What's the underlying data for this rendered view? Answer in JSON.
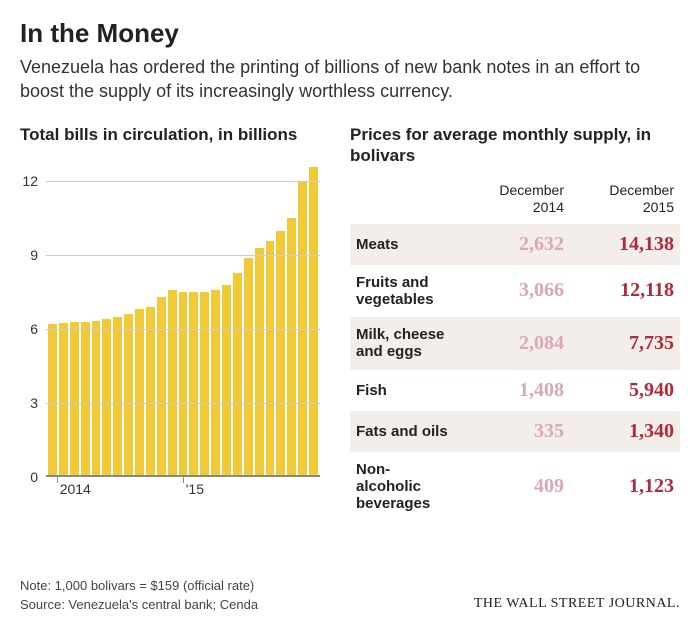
{
  "header": {
    "title": "In the Money",
    "subtitle": "Venezuela has ordered the printing of billions of new bank notes in an effort to boost the supply of its increasingly worthless currency."
  },
  "chart": {
    "title": "Total bills in circulation, in billions",
    "type": "bar",
    "ylim": [
      0,
      13
    ],
    "yticks": [
      0,
      3,
      6,
      9,
      12
    ],
    "values": [
      6.2,
      6.25,
      6.3,
      6.3,
      6.35,
      6.4,
      6.5,
      6.6,
      6.8,
      6.9,
      7.3,
      7.6,
      7.5,
      7.5,
      7.5,
      7.6,
      7.8,
      8.3,
      8.9,
      9.3,
      9.6,
      10.0,
      10.5,
      12.0,
      12.6
    ],
    "xlabels": [
      {
        "pos_pct": 4,
        "text": "2014",
        "tick": true
      },
      {
        "pos_pct": 50,
        "text": "'15",
        "tick": true
      }
    ],
    "bar_color": "#f2c936",
    "grid_color": "#cccccc",
    "baseline_color": "#888888"
  },
  "table": {
    "title": "Prices for average monthly supply, in bolivars",
    "columns": [
      {
        "label": ""
      },
      {
        "label": "December 2014"
      },
      {
        "label": "December 2015"
      }
    ],
    "value_colors": {
      "col1": "#d9a8b3",
      "col2": "#b02a3a"
    },
    "row_shade": "#f3eeea",
    "rows": [
      {
        "category": "Meats",
        "v1": "2,632",
        "v2": "14,138"
      },
      {
        "category": "Fruits and vegetables",
        "v1": "3,066",
        "v2": "12,118"
      },
      {
        "category": "Milk, cheese and eggs",
        "v1": "2,084",
        "v2": "7,735"
      },
      {
        "category": "Fish",
        "v1": "1,408",
        "v2": "5,940"
      },
      {
        "category": "Fats and oils",
        "v1": "335",
        "v2": "1,340"
      },
      {
        "category": "Non-alcoholic beverages",
        "v1": "409",
        "v2": "1,123"
      }
    ]
  },
  "footer": {
    "note": "Note: 1,000 bolivars = $159 (official rate)",
    "source": "Source: Venezuela's central bank; Cenda",
    "brand": "THE WALL STREET JOURNAL."
  }
}
